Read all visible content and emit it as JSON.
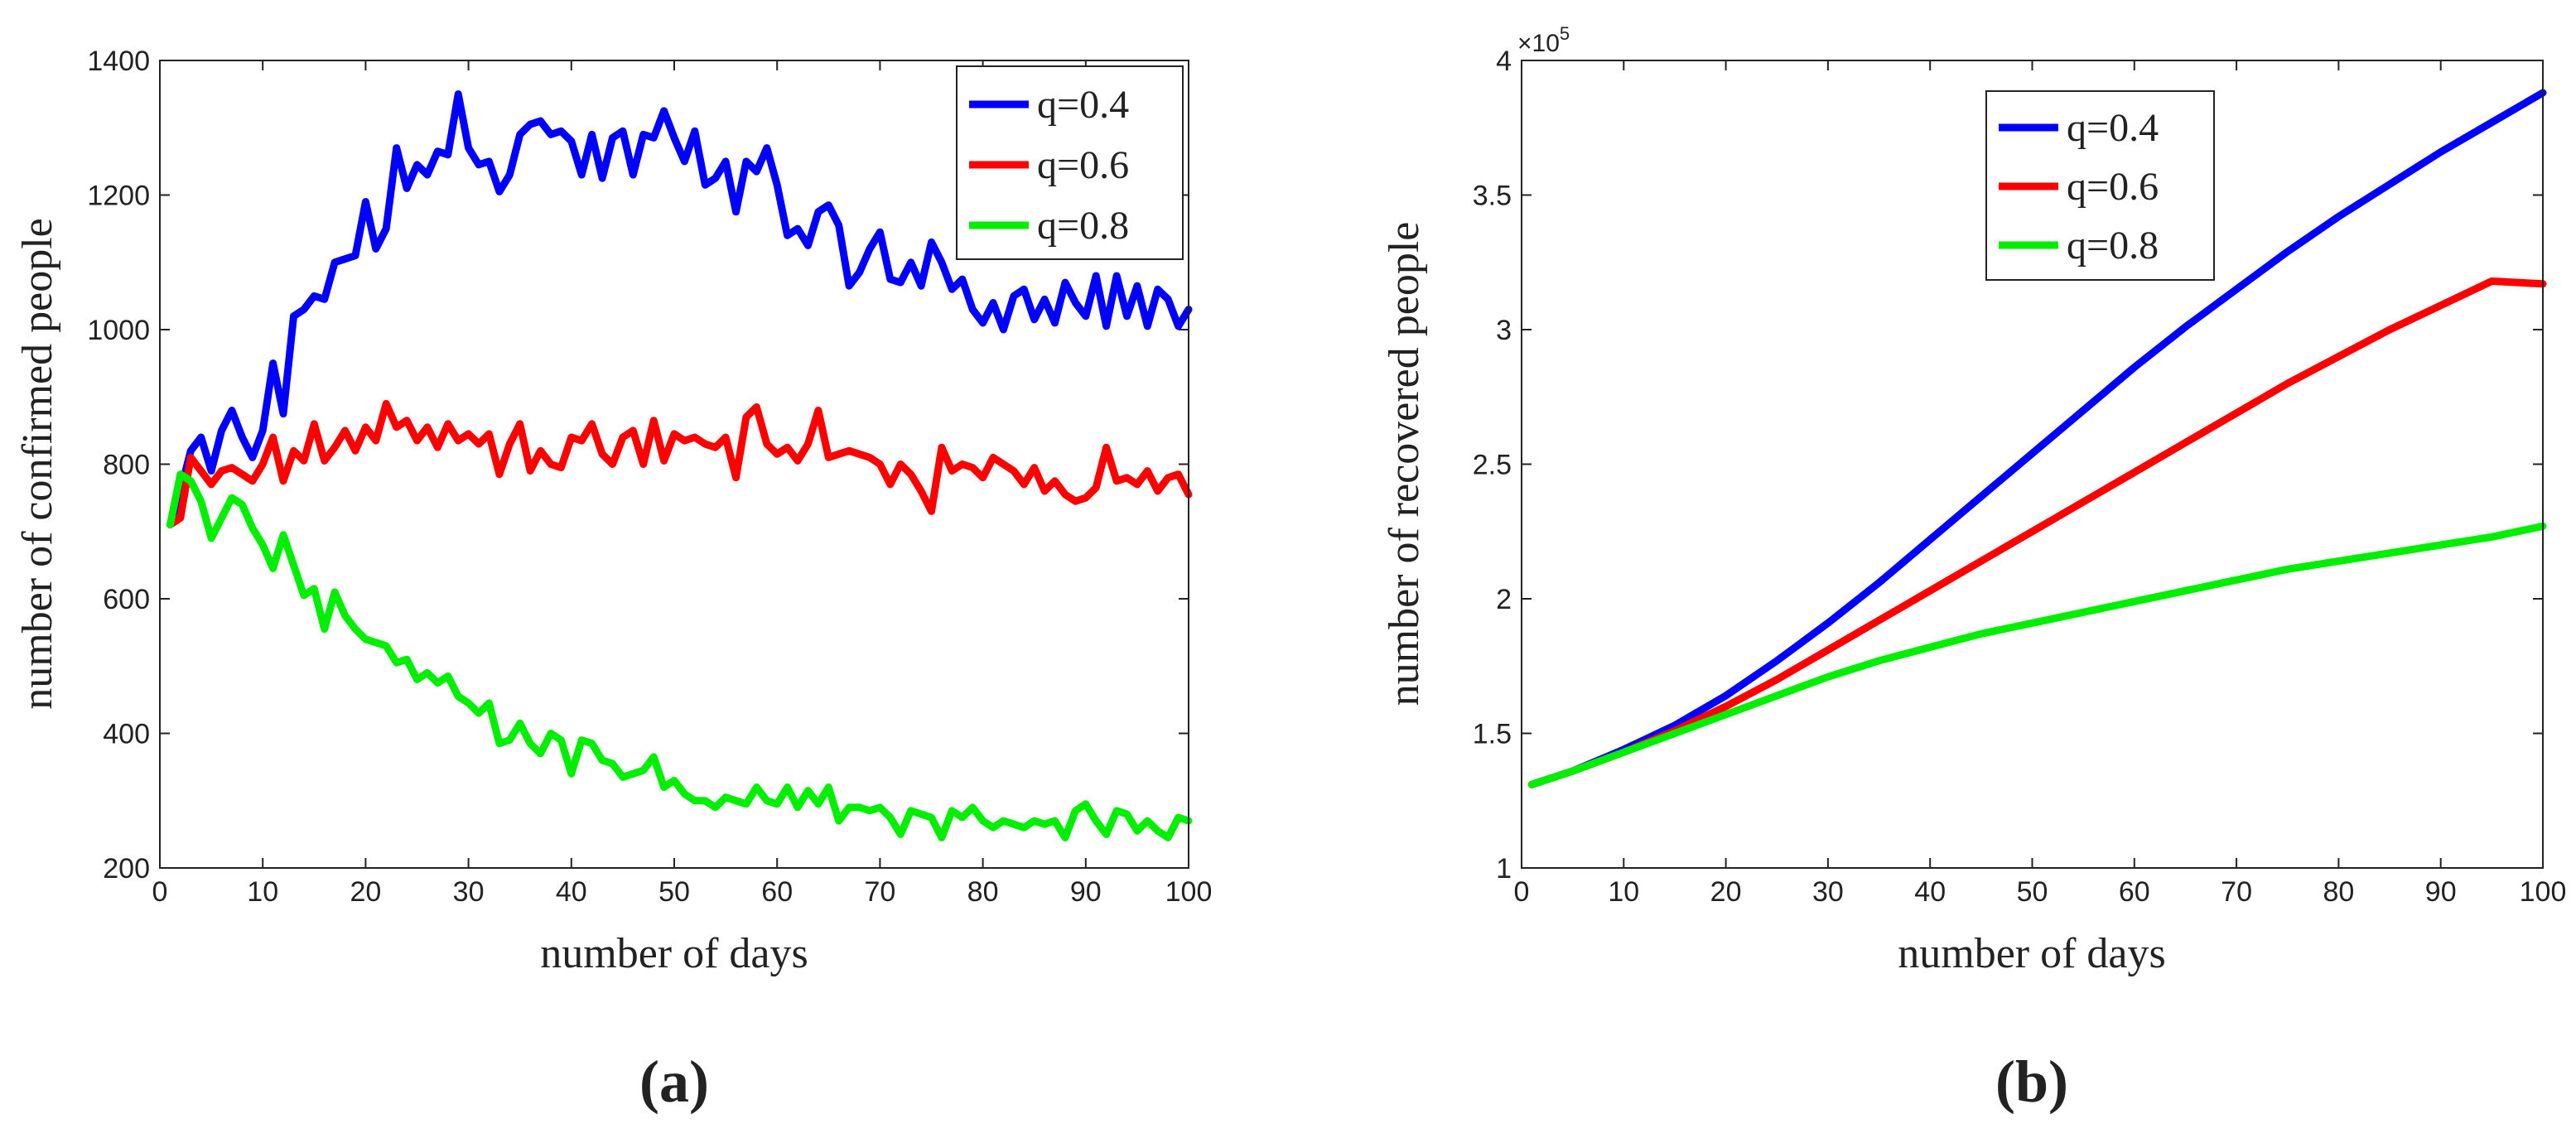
{
  "chart_data": [
    {
      "id": "a",
      "type": "line",
      "panel_label": "(a)",
      "xlabel": "number of days",
      "ylabel": "number of confirmed people",
      "xlim": [
        0,
        100
      ],
      "ylim": [
        200,
        1400
      ],
      "xticks": [
        "0",
        "10",
        "20",
        "30",
        "40",
        "50",
        "60",
        "70",
        "80",
        "90",
        "100"
      ],
      "yticks": [
        "200",
        "400",
        "600",
        "800",
        "1000",
        "1200",
        "1400"
      ],
      "legend_position": "top-right",
      "x": [
        1,
        2,
        3,
        4,
        5,
        6,
        7,
        8,
        9,
        10,
        11,
        12,
        13,
        14,
        15,
        16,
        17,
        18,
        19,
        20,
        21,
        22,
        23,
        24,
        25,
        26,
        27,
        28,
        29,
        30,
        31,
        32,
        33,
        34,
        35,
        36,
        37,
        38,
        39,
        40,
        41,
        42,
        43,
        44,
        45,
        46,
        47,
        48,
        49,
        50,
        51,
        52,
        53,
        54,
        55,
        56,
        57,
        58,
        59,
        60,
        61,
        62,
        63,
        64,
        65,
        66,
        67,
        68,
        69,
        70,
        71,
        72,
        73,
        74,
        75,
        76,
        77,
        78,
        79,
        80,
        81,
        82,
        83,
        84,
        85,
        86,
        87,
        88,
        89,
        90,
        91,
        92,
        93,
        94,
        95,
        96,
        97,
        98,
        99,
        100
      ],
      "series": [
        {
          "name": "q=0.4",
          "color": "#0000ff",
          "values": [
            710,
            760,
            820,
            840,
            790,
            850,
            880,
            840,
            810,
            850,
            950,
            875,
            1020,
            1030,
            1050,
            1045,
            1100,
            1105,
            1110,
            1190,
            1120,
            1150,
            1270,
            1210,
            1245,
            1230,
            1265,
            1260,
            1350,
            1270,
            1245,
            1250,
            1205,
            1230,
            1290,
            1305,
            1310,
            1290,
            1295,
            1280,
            1230,
            1290,
            1225,
            1285,
            1295,
            1230,
            1290,
            1285,
            1325,
            1285,
            1250,
            1295,
            1215,
            1225,
            1250,
            1175,
            1250,
            1235,
            1270,
            1215,
            1140,
            1150,
            1125,
            1175,
            1185,
            1155,
            1065,
            1085,
            1120,
            1145,
            1075,
            1070,
            1100,
            1065,
            1130,
            1100,
            1060,
            1075,
            1030,
            1010,
            1040,
            1000,
            1050,
            1060,
            1015,
            1045,
            1010,
            1070,
            1040,
            1020,
            1080,
            1005,
            1080,
            1020,
            1065,
            1005,
            1060,
            1045,
            1005,
            1030
          ]
        },
        {
          "name": "q=0.6",
          "color": "#ff0000",
          "values": [
            710,
            720,
            810,
            790,
            770,
            790,
            795,
            785,
            775,
            800,
            840,
            775,
            820,
            805,
            860,
            805,
            825,
            850,
            820,
            855,
            835,
            890,
            855,
            865,
            835,
            855,
            825,
            860,
            835,
            845,
            830,
            845,
            785,
            830,
            860,
            790,
            820,
            800,
            795,
            840,
            835,
            860,
            815,
            800,
            840,
            850,
            800,
            865,
            805,
            845,
            835,
            840,
            830,
            825,
            840,
            780,
            870,
            885,
            830,
            815,
            825,
            805,
            830,
            880,
            810,
            815,
            820,
            815,
            810,
            800,
            770,
            800,
            785,
            760,
            730,
            825,
            790,
            800,
            795,
            780,
            810,
            800,
            790,
            770,
            795,
            760,
            775,
            755,
            745,
            750,
            765,
            825,
            775,
            780,
            770,
            790,
            760,
            780,
            785,
            755
          ]
        },
        {
          "name": "q=0.8",
          "color": "#00ee00",
          "values": [
            710,
            785,
            775,
            745,
            690,
            720,
            750,
            740,
            705,
            680,
            645,
            695,
            650,
            605,
            615,
            555,
            610,
            575,
            555,
            540,
            535,
            530,
            505,
            510,
            480,
            490,
            475,
            485,
            455,
            445,
            430,
            445,
            385,
            390,
            415,
            385,
            370,
            400,
            390,
            340,
            390,
            385,
            360,
            355,
            335,
            340,
            345,
            365,
            320,
            330,
            310,
            300,
            300,
            290,
            305,
            300,
            295,
            320,
            300,
            295,
            320,
            290,
            315,
            295,
            320,
            270,
            290,
            290,
            285,
            290,
            275,
            250,
            285,
            280,
            275,
            245,
            285,
            275,
            290,
            270,
            260,
            270,
            265,
            260,
            270,
            265,
            270,
            245,
            285,
            295,
            270,
            250,
            285,
            280,
            255,
            270,
            255,
            245,
            275,
            270
          ]
        }
      ]
    },
    {
      "id": "b",
      "type": "line",
      "panel_label": "(b)",
      "xlabel": "number of days",
      "ylabel": "number of recovered people",
      "xlim": [
        0,
        100
      ],
      "ylim": [
        1,
        4
      ],
      "y_multiplier_base": "×10",
      "y_multiplier_exp": "5",
      "xticks": [
        "0",
        "10",
        "20",
        "30",
        "40",
        "50",
        "60",
        "70",
        "80",
        "90",
        "100"
      ],
      "yticks": [
        "1",
        "1.5",
        "2",
        "2.5",
        "3",
        "3.5",
        "4"
      ],
      "legend_position": "top-center",
      "x": [
        1,
        5,
        10,
        15,
        20,
        25,
        30,
        35,
        40,
        45,
        50,
        55,
        60,
        65,
        70,
        75,
        80,
        85,
        90,
        95,
        100
      ],
      "series": [
        {
          "name": "q=0.4",
          "color": "#0000ff",
          "values": [
            1.31,
            1.36,
            1.44,
            1.53,
            1.64,
            1.77,
            1.91,
            2.06,
            2.22,
            2.38,
            2.54,
            2.7,
            2.86,
            3.01,
            3.15,
            3.29,
            3.42,
            3.54,
            3.66,
            3.77,
            3.88
          ]
        },
        {
          "name": "q=0.6",
          "color": "#ff0000",
          "values": [
            1.31,
            1.36,
            1.43,
            1.51,
            1.6,
            1.7,
            1.81,
            1.92,
            2.03,
            2.14,
            2.25,
            2.36,
            2.47,
            2.58,
            2.69,
            2.8,
            2.9,
            3.0,
            3.09,
            3.18,
            3.17
          ]
        },
        {
          "name": "q=0.8",
          "color": "#00ee00",
          "values": [
            1.31,
            1.36,
            1.43,
            1.5,
            1.57,
            1.64,
            1.71,
            1.77,
            1.82,
            1.87,
            1.91,
            1.95,
            1.99,
            2.03,
            2.07,
            2.11,
            2.14,
            2.17,
            2.2,
            2.23,
            2.27
          ]
        }
      ]
    }
  ]
}
